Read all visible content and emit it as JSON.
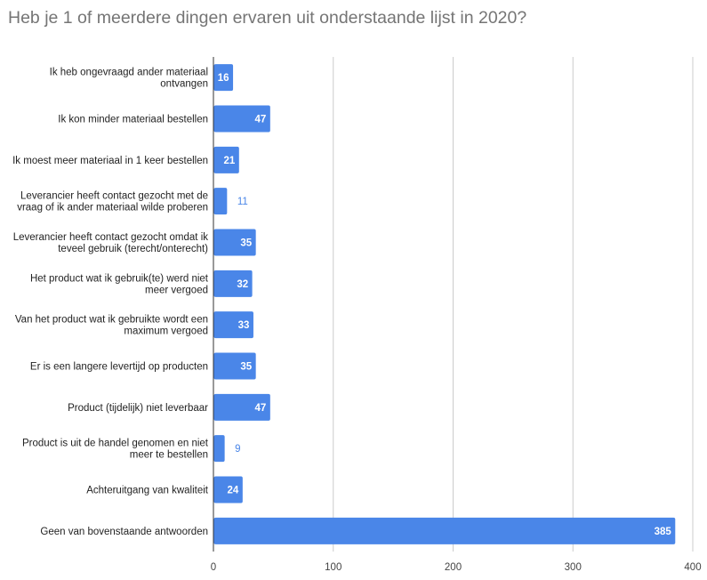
{
  "chart_data": {
    "type": "bar",
    "orientation": "horizontal",
    "title": "Heb je 1 of meerdere dingen ervaren uit onderstaande lijst in 2020?",
    "categories": [
      [
        "Ik heb ongevraagd ander materiaal",
        "ontvangen"
      ],
      [
        "Ik kon minder materiaal bestellen"
      ],
      [
        "Ik moest meer materiaal in 1 keer bestellen"
      ],
      [
        "Leverancier heeft contact gezocht met de",
        "vraag of ik ander materiaal wilde proberen"
      ],
      [
        "Leverancier heeft contact gezocht omdat ik",
        "teveel gebruik (terecht/onterecht)"
      ],
      [
        "Het product wat ik gebruik(te) werd niet",
        "meer vergoed"
      ],
      [
        "Van het product wat ik gebruikte wordt een",
        "maximum vergoed"
      ],
      [
        "Er is een langere levertijd op producten"
      ],
      [
        "Product (tijdelijk) niet leverbaar"
      ],
      [
        "Product is uit de handel genomen en niet",
        "meer te bestellen"
      ],
      [
        "Achteruitgang van kwaliteit"
      ],
      [
        "Geen van bovenstaande antwoorden"
      ]
    ],
    "values": [
      16,
      47,
      21,
      11,
      35,
      32,
      33,
      35,
      47,
      9,
      24,
      385
    ],
    "xlim": [
      0,
      400
    ],
    "xticks": [
      0,
      100,
      200,
      300,
      400
    ],
    "grid": true,
    "legend": "none",
    "bar_color": "#4a86e8",
    "gridline_color": "#cccccc",
    "data_labels": true
  }
}
